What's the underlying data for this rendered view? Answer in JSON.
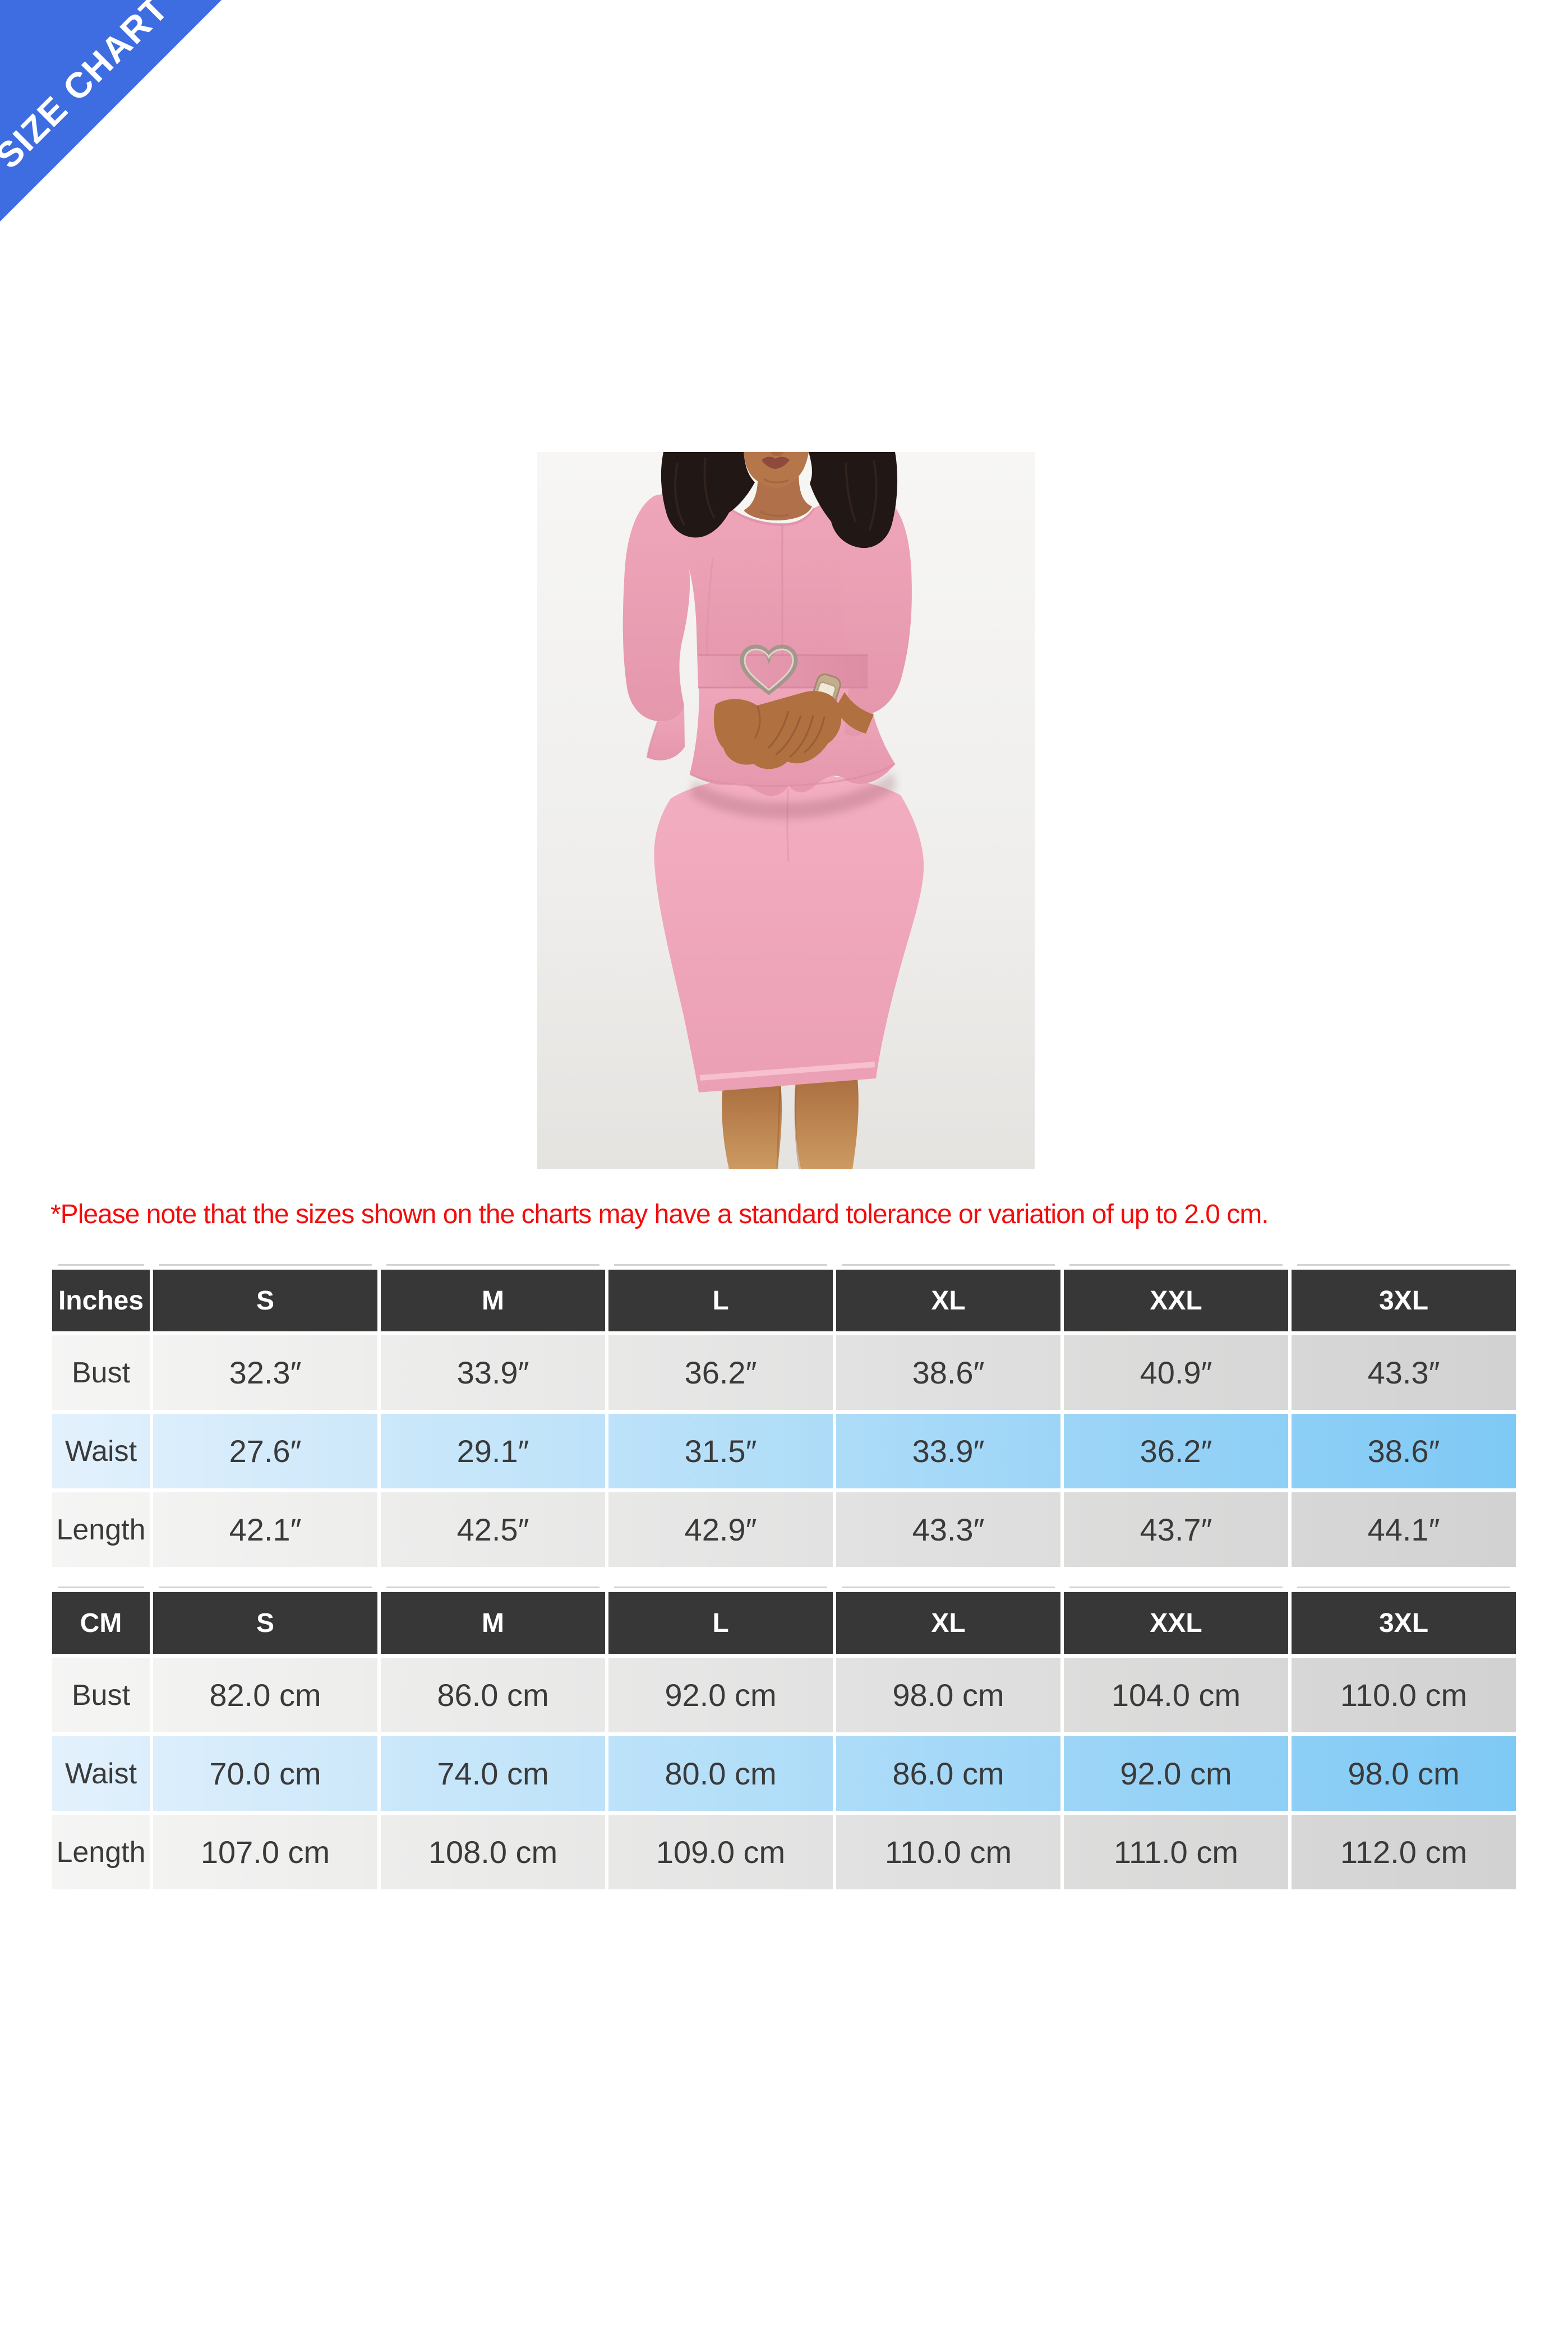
{
  "ribbon": {
    "label": "SIZE CHART"
  },
  "photo": {
    "subject": "Model wearing a pink long-sleeve peplum top with heart-buckle belt and pink pencil skirt"
  },
  "note": {
    "text": "*Please note that the sizes shown on the charts may have a standard tolerance or variation of up to 2.0 cm."
  },
  "theme": {
    "ribbon_blue": "#3d6de0",
    "note_color": "#f20d0d",
    "header_bg": "#373737",
    "header_text": "#ffffff",
    "cell_text": "#3a3a3a",
    "row_gray_start": "#f5f5f4",
    "row_gray_end": "#d2d2d2",
    "row_blue_start": "#e3f1fc",
    "row_blue_end": "#7ec9f5"
  },
  "tables": [
    {
      "unit_label": "Inches",
      "sizes": [
        "S",
        "M",
        "L",
        "XL",
        "XXL",
        "3XL"
      ],
      "rows": [
        {
          "label": "Bust",
          "highlight": false,
          "values": [
            "32.3″",
            "33.9″",
            "36.2″",
            "38.6″",
            "40.9″",
            "43.3″"
          ]
        },
        {
          "label": "Waist",
          "highlight": true,
          "values": [
            "27.6″",
            "29.1″",
            "31.5″",
            "33.9″",
            "36.2″",
            "38.6″"
          ]
        },
        {
          "label": "Length",
          "highlight": false,
          "values": [
            "42.1″",
            "42.5″",
            "42.9″",
            "43.3″",
            "43.7″",
            "44.1″"
          ]
        }
      ]
    },
    {
      "unit_label": "CM",
      "sizes": [
        "S",
        "M",
        "L",
        "XL",
        "XXL",
        "3XL"
      ],
      "rows": [
        {
          "label": "Bust",
          "highlight": false,
          "values": [
            "82.0 cm",
            "86.0 cm",
            "92.0 cm",
            "98.0 cm",
            "104.0 cm",
            "110.0 cm"
          ]
        },
        {
          "label": "Waist",
          "highlight": true,
          "values": [
            "70.0 cm",
            "74.0 cm",
            "80.0 cm",
            "86.0 cm",
            "92.0 cm",
            "98.0 cm"
          ]
        },
        {
          "label": "Length",
          "highlight": false,
          "values": [
            "107.0 cm",
            "108.0 cm",
            "109.0 cm",
            "110.0 cm",
            "111.0 cm",
            "112.0 cm"
          ]
        }
      ]
    }
  ]
}
